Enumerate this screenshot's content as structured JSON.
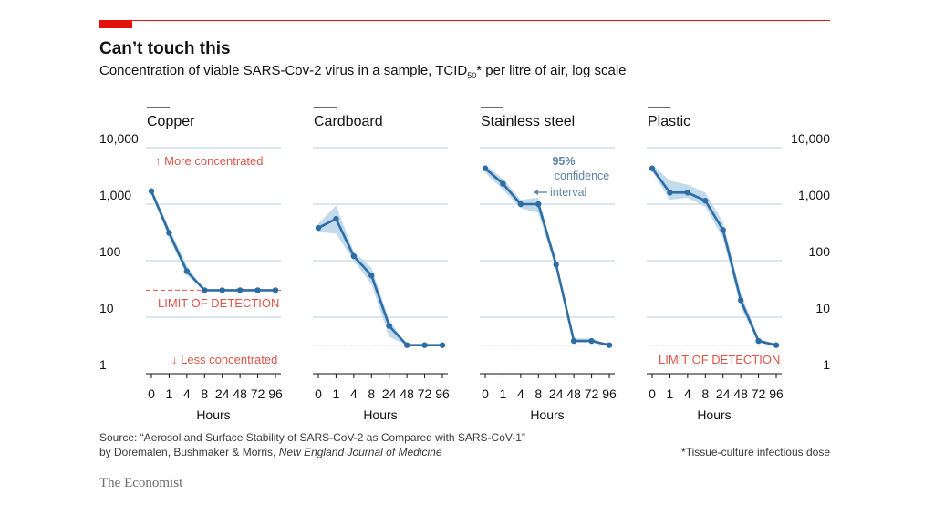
{
  "header": {
    "title": "Can’t touch this",
    "subtitle_main": "Concentration of viable SARS-Cov-2 virus in a sample, TCID",
    "subtitle_sub": "50",
    "subtitle_rest": "* per litre of air, log scale"
  },
  "colors": {
    "accent": "#e3120b",
    "line": "#2e6da4",
    "band": "#b7d3e8",
    "grid": "#c5d6e3",
    "limit": "#d9574a",
    "annotation_blue": "#5e84a8"
  },
  "y_tick_labels": [
    "1",
    "10",
    "100",
    "1,000",
    "10,000"
  ],
  "x_label": "Hours",
  "annotations": {
    "more": "↑ More concentrated",
    "less": "↓ Less concentrated",
    "limit": "LIMIT OF DETECTION",
    "ci": [
      "95%",
      "confidence",
      "interval"
    ]
  },
  "footer": {
    "source_line1": "Source: “Aerosol and Surface Stability of SARS-CoV-2 as Compared with SARS-CoV-1”",
    "source_line2_prefix": "by Doremalen, Bushmaker & Morris, ",
    "source_line2_journal": "New England Journal of Medicine",
    "footnote": "*Tissue-culture infectious dose",
    "logo": "The Economist"
  },
  "chart_data": [
    {
      "type": "line",
      "title": "Copper",
      "x": [
        0,
        1,
        4,
        8,
        24,
        48,
        72,
        96
      ],
      "xlabel": "Hours",
      "ylabel": "TCID50 per litre of air",
      "yscale": "log",
      "ylim": [
        1,
        10000
      ],
      "limit_of_detection": 30,
      "series": [
        {
          "values": [
            1700,
            310,
            65,
            30,
            30,
            30,
            30,
            30
          ],
          "ci_lower": [
            1500,
            250,
            55,
            30,
            30,
            30,
            30,
            30
          ],
          "ci_upper": [
            1900,
            380,
            80,
            30,
            30,
            30,
            30,
            30
          ]
        }
      ]
    },
    {
      "type": "line",
      "title": "Cardboard",
      "x": [
        0,
        1,
        4,
        8,
        24,
        48,
        72,
        96
      ],
      "xlabel": "Hours",
      "yscale": "log",
      "ylim": [
        1,
        10000
      ],
      "limit_of_detection": 3.2,
      "series": [
        {
          "values": [
            380,
            550,
            120,
            55,
            7,
            3.2,
            3.2,
            3.2
          ],
          "ci_lower": [
            320,
            300,
            100,
            38,
            4.5,
            3.2,
            3.2,
            3.2
          ],
          "ci_upper": [
            450,
            950,
            145,
            75,
            9,
            3.2,
            3.2,
            3.2
          ]
        }
      ]
    },
    {
      "type": "line",
      "title": "Stainless steel",
      "x": [
        0,
        1,
        4,
        8,
        24,
        48,
        72,
        96
      ],
      "xlabel": "Hours",
      "yscale": "log",
      "ylim": [
        1,
        10000
      ],
      "limit_of_detection": 3.2,
      "series": [
        {
          "values": [
            4300,
            2300,
            1000,
            1000,
            85,
            3.8,
            3.8,
            3.2
          ],
          "ci_lower": [
            3600,
            1800,
            850,
            700,
            70,
            3.6,
            3.6,
            3.2
          ],
          "ci_upper": [
            5000,
            2800,
            1200,
            1300,
            100,
            4.2,
            4.2,
            3.2
          ]
        }
      ]
    },
    {
      "type": "line",
      "title": "Plastic",
      "x": [
        0,
        1,
        4,
        8,
        24,
        48,
        72,
        96
      ],
      "xlabel": "Hours",
      "yscale": "log",
      "ylim": [
        1,
        10000
      ],
      "limit_of_detection": 3.2,
      "series": [
        {
          "values": [
            4300,
            1600,
            1600,
            1150,
            350,
            20,
            3.8,
            3.2
          ],
          "ci_lower": [
            3800,
            1200,
            1300,
            900,
            250,
            15,
            3.5,
            3.2
          ],
          "ci_upper": [
            5000,
            2600,
            2200,
            1600,
            480,
            27,
            4.2,
            3.2
          ]
        }
      ]
    }
  ]
}
